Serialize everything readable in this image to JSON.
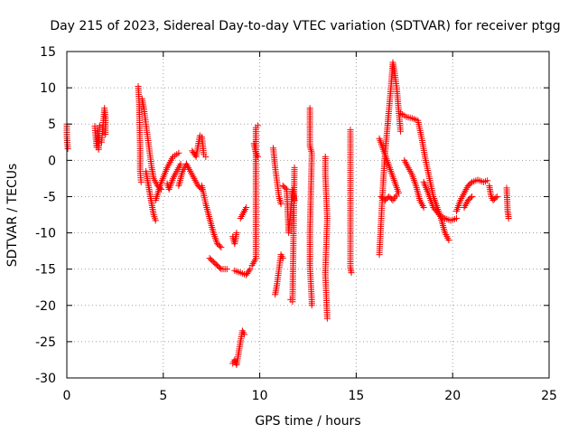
{
  "chart_data": {
    "type": "scatter",
    "title": "Day 215 of 2023, Sidereal Day-to-day VTEC variation (SDTVAR) for receiver ptgg",
    "xlabel": "GPS time / hours",
    "ylabel": "SDTVAR / TECUs",
    "xlim": [
      0,
      25
    ],
    "ylim": [
      -30,
      15
    ],
    "xticks": [
      "0",
      "5",
      "10",
      "15",
      "20",
      "25"
    ],
    "yticks": [
      "15",
      "10",
      "5",
      "0",
      "-5",
      "-10",
      "-15",
      "-20",
      "-25",
      "-30"
    ],
    "grid": true,
    "marker": "+",
    "color": "#ff0000",
    "series": [
      {
        "name": "s1",
        "points": [
          [
            0.0,
            5.0
          ],
          [
            0.0,
            3.3
          ],
          [
            0.05,
            1.6
          ]
        ]
      },
      {
        "name": "s2",
        "points": [
          [
            1.45,
            4.7
          ],
          [
            1.5,
            3.2
          ],
          [
            1.55,
            1.8
          ],
          [
            1.6,
            4.0
          ],
          [
            1.65,
            1.5
          ],
          [
            1.7,
            4.8
          ]
        ]
      },
      {
        "name": "s3",
        "points": [
          [
            1.8,
            2.5
          ],
          [
            1.85,
            4.0
          ],
          [
            1.9,
            5.5
          ],
          [
            1.95,
            7.2
          ],
          [
            2.0,
            6.0
          ],
          [
            2.0,
            3.6
          ]
        ]
      },
      {
        "name": "s4",
        "points": [
          [
            3.7,
            10.2
          ],
          [
            3.75,
            8.0
          ],
          [
            3.8,
            1.6
          ],
          [
            3.8,
            -1.5
          ],
          [
            3.85,
            -3.0
          ]
        ]
      },
      {
        "name": "s5",
        "points": [
          [
            3.9,
            8.5
          ],
          [
            4.0,
            7.0
          ],
          [
            4.1,
            5.0
          ],
          [
            4.2,
            3.0
          ],
          [
            4.3,
            1.0
          ],
          [
            4.4,
            -1.0
          ],
          [
            4.5,
            -2.5
          ],
          [
            4.7,
            -3.5
          ],
          [
            4.9,
            -4.0
          ]
        ]
      },
      {
        "name": "s6",
        "points": [
          [
            4.1,
            -1.5
          ],
          [
            4.2,
            -3.0
          ],
          [
            4.3,
            -4.5
          ],
          [
            4.4,
            -6.0
          ],
          [
            4.5,
            -7.5
          ],
          [
            4.6,
            -8.3
          ]
        ]
      },
      {
        "name": "s7",
        "points": [
          [
            4.6,
            -5.5
          ],
          [
            4.9,
            -3.0
          ],
          [
            5.2,
            -1.0
          ],
          [
            5.5,
            0.5
          ],
          [
            5.8,
            1.0
          ]
        ]
      },
      {
        "name": "s8",
        "points": [
          [
            5.2,
            -3.2
          ],
          [
            5.3,
            -4.0
          ],
          [
            5.5,
            -2.5
          ],
          [
            5.7,
            -1.5
          ],
          [
            5.9,
            -0.5
          ]
        ]
      },
      {
        "name": "s9",
        "points": [
          [
            5.8,
            -3.5
          ],
          [
            6.0,
            -1.5
          ],
          [
            6.2,
            -0.5
          ],
          [
            6.4,
            -1.5
          ],
          [
            6.6,
            -2.5
          ],
          [
            6.8,
            -3.5
          ],
          [
            7.0,
            -4.0
          ]
        ]
      },
      {
        "name": "s10",
        "points": [
          [
            6.5,
            1.3
          ],
          [
            6.7,
            0.5
          ],
          [
            6.9,
            3.4
          ],
          [
            7.0,
            3.2
          ],
          [
            7.1,
            0.8
          ],
          [
            7.2,
            0.5
          ]
        ]
      },
      {
        "name": "s11",
        "points": [
          [
            7.0,
            -3.5
          ],
          [
            7.2,
            -6.0
          ],
          [
            7.4,
            -8.0
          ],
          [
            7.6,
            -10.0
          ],
          [
            7.8,
            -11.5
          ],
          [
            8.0,
            -12.0
          ]
        ]
      },
      {
        "name": "s12",
        "points": [
          [
            7.4,
            -13.5
          ],
          [
            7.6,
            -14.0
          ],
          [
            7.8,
            -14.5
          ],
          [
            8.0,
            -15.0
          ],
          [
            8.3,
            -15.0
          ]
        ]
      },
      {
        "name": "s13",
        "points": [
          [
            8.7,
            -15.2
          ],
          [
            9.0,
            -15.5
          ],
          [
            9.3,
            -15.8
          ],
          [
            9.5,
            -15.0
          ]
        ]
      },
      {
        "name": "s14",
        "points": [
          [
            8.6,
            -10.5
          ],
          [
            8.7,
            -11.5
          ],
          [
            8.8,
            -10.0
          ]
        ]
      },
      {
        "name": "s15",
        "points": [
          [
            9.0,
            -8.0
          ],
          [
            9.2,
            -7.0
          ],
          [
            9.3,
            -6.5
          ]
        ]
      },
      {
        "name": "s16",
        "points": [
          [
            8.6,
            -28.0
          ],
          [
            8.7,
            -27.5
          ],
          [
            8.8,
            -28.2
          ],
          [
            9.1,
            -23.5
          ],
          [
            9.2,
            -24.0
          ]
        ]
      },
      {
        "name": "s17",
        "points": [
          [
            9.6,
            -14.5
          ],
          [
            9.7,
            -14.0
          ],
          [
            9.8,
            -13.5
          ],
          [
            9.8,
            4.5
          ],
          [
            9.9,
            4.8
          ]
        ]
      },
      {
        "name": "s18",
        "points": [
          [
            9.7,
            2.3
          ],
          [
            9.8,
            1.0
          ],
          [
            9.9,
            0.5
          ]
        ]
      },
      {
        "name": "s19",
        "points": [
          [
            10.7,
            1.7
          ],
          [
            10.8,
            -1.0
          ],
          [
            10.9,
            -3.0
          ],
          [
            11.0,
            -5.0
          ],
          [
            11.1,
            -6.0
          ]
        ]
      },
      {
        "name": "s20",
        "points": [
          [
            10.8,
            -18.5
          ],
          [
            10.9,
            -17.0
          ],
          [
            11.0,
            -15.0
          ],
          [
            11.1,
            -13.0
          ],
          [
            11.2,
            -13.5
          ]
        ]
      },
      {
        "name": "s21",
        "points": [
          [
            11.2,
            -3.5
          ],
          [
            11.4,
            -4.0
          ],
          [
            11.5,
            -10.0
          ],
          [
            11.7,
            -4.0
          ],
          [
            11.8,
            -5.5
          ]
        ]
      },
      {
        "name": "s22",
        "points": [
          [
            11.6,
            -19.2
          ],
          [
            11.7,
            -19.5
          ],
          [
            11.8,
            -1.0
          ]
        ]
      },
      {
        "name": "s23",
        "points": [
          [
            12.6,
            7.2
          ],
          [
            12.6,
            2.0
          ],
          [
            12.7,
            1.0
          ],
          [
            12.6,
            -10.0
          ],
          [
            12.6,
            -13.5
          ],
          [
            12.6,
            -14.5
          ],
          [
            12.7,
            -19.5
          ],
          [
            12.7,
            -20.0
          ]
        ]
      },
      {
        "name": "s24",
        "points": [
          [
            13.4,
            0.5
          ],
          [
            13.4,
            -2.0
          ],
          [
            13.5,
            -8.0
          ],
          [
            13.4,
            -15.5
          ],
          [
            13.5,
            -21.8
          ]
        ]
      },
      {
        "name": "s25",
        "points": [
          [
            14.7,
            4.2
          ],
          [
            14.7,
            0.3
          ],
          [
            14.7,
            -2.5
          ],
          [
            14.7,
            -14.8
          ],
          [
            14.75,
            -15.5
          ]
        ]
      },
      {
        "name": "s26",
        "points": [
          [
            16.2,
            -13.0
          ],
          [
            16.3,
            -8.0
          ],
          [
            16.4,
            -3.0
          ],
          [
            16.5,
            1.0
          ],
          [
            16.6,
            4.0
          ],
          [
            16.7,
            7.0
          ],
          [
            16.8,
            10.0
          ],
          [
            16.9,
            13.5
          ],
          [
            17.0,
            12.0
          ],
          [
            17.1,
            10.0
          ],
          [
            17.2,
            7.0
          ],
          [
            17.3,
            4.0
          ]
        ]
      },
      {
        "name": "s27",
        "points": [
          [
            16.2,
            3.0
          ],
          [
            16.4,
            1.5
          ],
          [
            16.6,
            0.0
          ],
          [
            16.8,
            -1.5
          ],
          [
            17.0,
            -3.0
          ],
          [
            17.2,
            -4.5
          ]
        ]
      },
      {
        "name": "s28",
        "points": [
          [
            16.3,
            -5.0
          ],
          [
            16.5,
            -5.5
          ],
          [
            16.7,
            -5.0
          ],
          [
            16.9,
            -5.5
          ],
          [
            17.1,
            -4.8
          ]
        ]
      },
      {
        "name": "s29",
        "points": [
          [
            17.3,
            6.5
          ],
          [
            17.6,
            6.0
          ],
          [
            17.9,
            5.8
          ],
          [
            18.2,
            5.5
          ],
          [
            18.4,
            3.0
          ],
          [
            18.6,
            0.0
          ],
          [
            18.8,
            -2.5
          ],
          [
            19.0,
            -5.0
          ],
          [
            19.2,
            -6.5
          ],
          [
            19.4,
            -8.0
          ],
          [
            19.6,
            -10.0
          ],
          [
            19.8,
            -11.0
          ]
        ]
      },
      {
        "name": "s30",
        "points": [
          [
            17.5,
            0.0
          ],
          [
            17.7,
            -1.0
          ],
          [
            17.9,
            -2.0
          ],
          [
            18.1,
            -3.5
          ],
          [
            18.3,
            -5.5
          ],
          [
            18.5,
            -6.5
          ]
        ]
      },
      {
        "name": "s31",
        "points": [
          [
            18.5,
            -3.0
          ],
          [
            18.8,
            -5.0
          ],
          [
            19.0,
            -6.5
          ],
          [
            19.3,
            -7.5
          ],
          [
            19.6,
            -8.0
          ],
          [
            19.9,
            -8.3
          ],
          [
            20.2,
            -8.0
          ]
        ]
      },
      {
        "name": "s32",
        "points": [
          [
            20.2,
            -7.0
          ],
          [
            20.4,
            -5.5
          ],
          [
            20.6,
            -4.5
          ],
          [
            20.8,
            -3.5
          ],
          [
            21.0,
            -3.0
          ],
          [
            21.3,
            -2.7
          ],
          [
            21.6,
            -3.0
          ],
          [
            21.8,
            -2.8
          ]
        ]
      },
      {
        "name": "s33",
        "points": [
          [
            20.6,
            -6.5
          ],
          [
            20.8,
            -5.5
          ],
          [
            21.0,
            -5.0
          ]
        ]
      },
      {
        "name": "s34",
        "points": [
          [
            21.9,
            -3.5
          ],
          [
            22.0,
            -5.0
          ],
          [
            22.1,
            -5.5
          ],
          [
            22.3,
            -5.0
          ]
        ]
      },
      {
        "name": "s35",
        "points": [
          [
            22.8,
            -3.8
          ],
          [
            22.85,
            -7.0
          ],
          [
            22.9,
            -8.0
          ]
        ]
      }
    ]
  }
}
